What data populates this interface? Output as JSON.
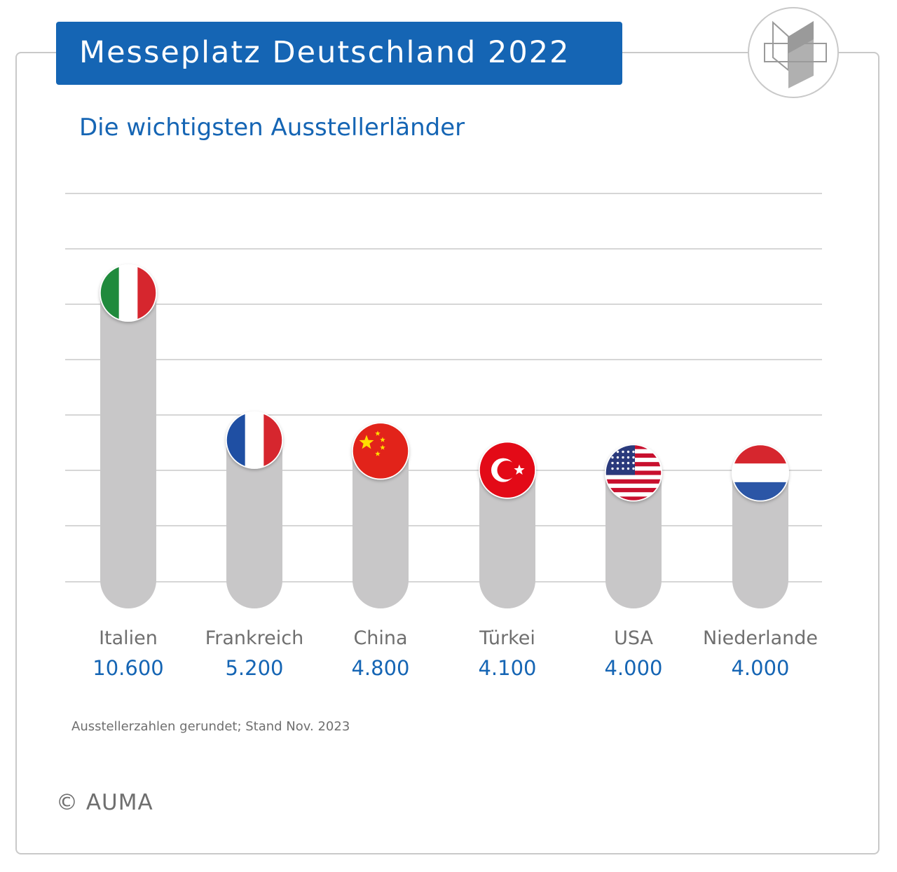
{
  "header": {
    "title": "Messeplatz Deutschland 2022",
    "subtitle": "Die wichtigsten Ausstellerländer",
    "title_bg_color": "#1565b4"
  },
  "logo": {
    "icon": "auma-logo-icon"
  },
  "chart_data": {
    "type": "bar",
    "title": "Die wichtigsten Ausstellerländer",
    "categories": [
      "Italien",
      "Frankreich",
      "China",
      "Türkei",
      "USA",
      "Niederlande"
    ],
    "values": [
      10600,
      5200,
      4800,
      4100,
      4000,
      4000
    ],
    "value_labels": [
      "10.600",
      "5.200",
      "4.800",
      "4.100",
      "4.000",
      "4.000"
    ],
    "bar_markers": [
      "italy-flag-icon",
      "france-flag-icon",
      "china-flag-icon",
      "turkey-flag-icon",
      "usa-flag-icon",
      "netherlands-flag-icon"
    ],
    "bar_color": "#c8c7c8",
    "value_color": "#1565b4",
    "grid": true,
    "xlabel": "",
    "ylabel": ""
  },
  "footnote": "Ausstellerzahlen gerundet; Stand Nov. 2023",
  "copyright": "© AUMA"
}
